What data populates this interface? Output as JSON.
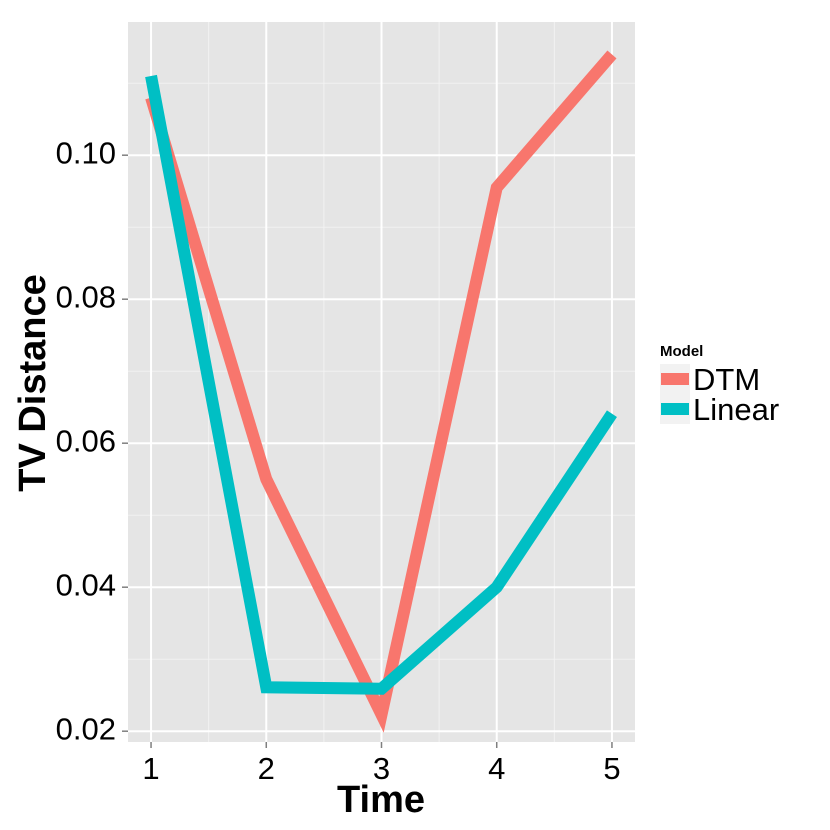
{
  "chart_data": {
    "type": "line",
    "xlabel": "Time",
    "ylabel": "TV Distance",
    "x": [
      1,
      2,
      3,
      4,
      5
    ],
    "x_ticks": [
      "1",
      "2",
      "3",
      "4",
      "5"
    ],
    "xlim": [
      0.8,
      5.2
    ],
    "y_ticks": [
      "0.02",
      "0.04",
      "0.06",
      "0.08",
      "0.10"
    ],
    "ylim": [
      0.0185,
      0.1185
    ],
    "grid": true,
    "legend_title": "Model",
    "legend_position": "right",
    "series": [
      {
        "name": "DTM",
        "color": "#F8766D",
        "values": [
          0.108,
          0.055,
          0.0223,
          0.0955,
          0.114
        ]
      },
      {
        "name": "Linear",
        "color": "#00BFC4",
        "values": [
          0.111,
          0.0261,
          0.0259,
          0.04,
          0.0641
        ]
      }
    ]
  }
}
